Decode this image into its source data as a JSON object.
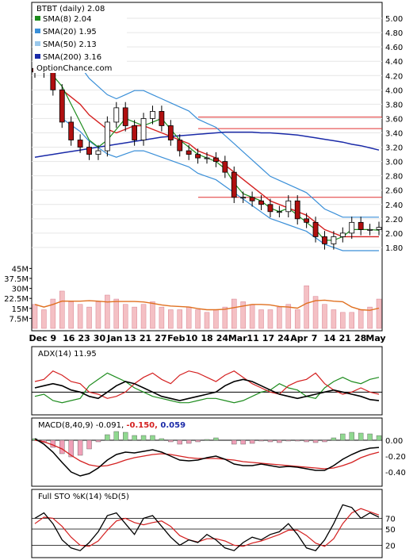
{
  "watermark": "OptionChance.com",
  "colors": {
    "sma8": "#1e8c1e",
    "sma20": "#3a8fd8",
    "sma50": "#e8e030",
    "sma200": "#1a2aa8",
    "upper_band": "#3a8fd8",
    "ema_red": "#d42020",
    "resistance": "#e03030",
    "volume_bar": "#f4c0c4",
    "volume_avg": "#e07020",
    "volume_avg200": "#e8b070",
    "adx": "#000000",
    "plus_di": "#1e8c1e",
    "minus_di": "#d42020",
    "macd": "#000000",
    "signal": "#d42020",
    "hist_pos": "#90d890",
    "hist_neg": "#f0a0b8",
    "sto_k": "#000000",
    "sto_d": "#d42020"
  },
  "chart_data": [
    {
      "type": "candlestick",
      "title": "BTBT (daily) 2.08",
      "legend": [
        {
          "name": "SMA(8) 2.04",
          "color": "#1e8c1e"
        },
        {
          "name": "SMA(20) 1.95",
          "color": "#3a8fd8"
        },
        {
          "name": "SMA(50) 2.13",
          "color": "#9ac8ec"
        },
        {
          "name": "SMA(200) 3.16",
          "color": "#1a2aa8"
        }
      ],
      "ylim": [
        1.6,
        5.1
      ],
      "y_ticks": [
        "1.80",
        "2.00",
        "2.20",
        "2.40",
        "2.60",
        "2.80",
        "3.00",
        "3.20",
        "3.40",
        "3.60",
        "3.80",
        "4.00",
        "4.20",
        "4.40",
        "4.60",
        "4.80",
        "5.00"
      ],
      "x_ticks": [
        "Dec",
        "9",
        "16",
        "23",
        "30",
        "Jan",
        "13",
        "21",
        "27",
        "Feb",
        "10",
        "18",
        "24",
        "Mar",
        "11",
        "17",
        "24",
        "Apr",
        "7",
        "14",
        "21",
        "28",
        "May"
      ],
      "x": [
        "2023-12-01",
        "2023-12-05",
        "2023-12-08",
        "2023-12-12",
        "2023-12-15",
        "2023-12-19",
        "2023-12-22",
        "2023-12-27",
        "2024-01-02",
        "2024-01-05",
        "2024-01-10",
        "2024-01-16",
        "2024-01-19",
        "2024-01-24",
        "2024-01-29",
        "2024-02-01",
        "2024-02-06",
        "2024-02-09",
        "2024-02-14",
        "2024-02-20",
        "2024-02-23",
        "2024-02-28",
        "2024-03-04",
        "2024-03-07",
        "2024-03-12",
        "2024-03-15",
        "2024-03-20",
        "2024-03-25",
        "2024-03-28",
        "2024-04-03",
        "2024-04-08",
        "2024-04-11",
        "2024-04-16",
        "2024-04-19",
        "2024-04-24",
        "2024-04-29",
        "2024-05-02",
        "2024-05-07",
        "2024-05-10"
      ],
      "close": [
        4.25,
        4.3,
        4.0,
        3.55,
        3.3,
        3.2,
        3.1,
        3.15,
        3.55,
        3.75,
        3.5,
        3.3,
        3.6,
        3.7,
        3.5,
        3.3,
        3.15,
        3.1,
        3.05,
        3.05,
        3.0,
        2.85,
        2.5,
        2.5,
        2.45,
        2.4,
        2.3,
        2.3,
        2.45,
        2.2,
        2.15,
        1.95,
        1.85,
        1.95,
        2.0,
        2.15,
        2.05,
        2.05,
        2.08
      ],
      "sma8": [
        null,
        null,
        4.2,
        4.05,
        3.8,
        3.55,
        3.3,
        3.2,
        3.3,
        3.45,
        3.6,
        3.55,
        3.5,
        3.55,
        3.6,
        3.45,
        3.3,
        3.2,
        3.1,
        3.05,
        3.0,
        2.9,
        2.7,
        2.55,
        2.5,
        2.45,
        2.35,
        2.3,
        2.35,
        2.25,
        2.15,
        2.05,
        1.9,
        1.9,
        1.95,
        2.05,
        2.05,
        2.05,
        2.04
      ],
      "sma20": [
        null,
        null,
        null,
        4.0,
        3.9,
        3.8,
        3.65,
        3.55,
        3.45,
        3.4,
        3.45,
        3.5,
        3.5,
        3.45,
        3.4,
        3.35,
        3.3,
        3.25,
        3.15,
        3.1,
        3.05,
        2.95,
        2.85,
        2.75,
        2.65,
        2.55,
        2.45,
        2.4,
        2.35,
        2.3,
        2.25,
        2.15,
        2.05,
        2.0,
        1.95,
        1.95,
        1.95,
        1.95,
        1.95
      ],
      "sma200": [
        3.06,
        3.08,
        3.1,
        3.12,
        3.14,
        3.16,
        3.18,
        3.2,
        3.22,
        3.24,
        3.26,
        3.28,
        3.3,
        3.32,
        3.34,
        3.35,
        3.36,
        3.37,
        3.38,
        3.39,
        3.4,
        3.41,
        3.41,
        3.41,
        3.41,
        3.4,
        3.4,
        3.39,
        3.38,
        3.37,
        3.35,
        3.33,
        3.31,
        3.29,
        3.27,
        3.24,
        3.22,
        3.19,
        3.16
      ],
      "resistance_levels": [
        3.62,
        3.46,
        2.5
      ]
    },
    {
      "type": "bar",
      "title": "",
      "y_ticks": [
        "7.5M",
        "15M",
        "22.5M",
        "30M",
        "37.5M",
        "45M"
      ],
      "ylim": [
        0,
        50
      ],
      "values": [
        18,
        14,
        22,
        28,
        20,
        18,
        16,
        20,
        25,
        22,
        18,
        16,
        18,
        20,
        16,
        14,
        14,
        16,
        14,
        12,
        14,
        16,
        22,
        20,
        18,
        14,
        14,
        16,
        18,
        14,
        32,
        24,
        18,
        14,
        12,
        12,
        14,
        16,
        22
      ]
    },
    {
      "type": "line",
      "title": "ADX(14) 11.95",
      "ylim": [
        0,
        60
      ],
      "adx": [
        24,
        26,
        28,
        26,
        22,
        20,
        16,
        14,
        20,
        26,
        30,
        28,
        24,
        20,
        16,
        14,
        12,
        14,
        16,
        18,
        20,
        26,
        30,
        32,
        30,
        26,
        22,
        18,
        16,
        14,
        16,
        18,
        20,
        22,
        20,
        18,
        16,
        13,
        11.95
      ],
      "plus_di": [
        16,
        18,
        12,
        10,
        12,
        14,
        26,
        32,
        38,
        34,
        30,
        24,
        20,
        16,
        14,
        12,
        10,
        10,
        12,
        14,
        14,
        12,
        10,
        12,
        16,
        20,
        22,
        28,
        24,
        22,
        16,
        14,
        24,
        30,
        34,
        30,
        28,
        32,
        34
      ],
      "minus_di": [
        30,
        32,
        40,
        36,
        30,
        28,
        20,
        18,
        14,
        16,
        20,
        28,
        34,
        38,
        32,
        28,
        36,
        40,
        38,
        34,
        30,
        36,
        40,
        34,
        28,
        24,
        20,
        18,
        26,
        30,
        32,
        38,
        28,
        22,
        18,
        20,
        24,
        20,
        18
      ]
    },
    {
      "type": "line",
      "title": "MACD(8,40,9) -0.091, -0.150, 0.059",
      "y_ticks": [
        "0.00",
        "-0.20",
        "-0.40"
      ],
      "ylim": [
        -0.55,
        0.1
      ],
      "macd": [
        0.02,
        -0.05,
        -0.15,
        -0.28,
        -0.4,
        -0.45,
        -0.42,
        -0.35,
        -0.25,
        -0.18,
        -0.15,
        -0.16,
        -0.14,
        -0.12,
        -0.15,
        -0.2,
        -0.25,
        -0.26,
        -0.25,
        -0.22,
        -0.2,
        -0.24,
        -0.3,
        -0.32,
        -0.32,
        -0.3,
        -0.32,
        -0.34,
        -0.33,
        -0.34,
        -0.36,
        -0.38,
        -0.38,
        -0.32,
        -0.24,
        -0.18,
        -0.13,
        -0.1,
        -0.091
      ],
      "signal": [
        0.0,
        -0.02,
        -0.06,
        -0.11,
        -0.19,
        -0.26,
        -0.31,
        -0.33,
        -0.32,
        -0.29,
        -0.25,
        -0.22,
        -0.2,
        -0.18,
        -0.17,
        -0.18,
        -0.2,
        -0.22,
        -0.23,
        -0.23,
        -0.23,
        -0.24,
        -0.25,
        -0.27,
        -0.28,
        -0.29,
        -0.3,
        -0.31,
        -0.32,
        -0.33,
        -0.34,
        -0.35,
        -0.36,
        -0.35,
        -0.32,
        -0.28,
        -0.22,
        -0.18,
        -0.15
      ],
      "histogram": [
        0.02,
        -0.03,
        -0.09,
        -0.17,
        -0.21,
        -0.19,
        -0.11,
        -0.02,
        0.07,
        0.11,
        0.1,
        0.06,
        0.06,
        0.06,
        0.02,
        -0.02,
        -0.05,
        -0.04,
        -0.02,
        0.01,
        0.03,
        0.0,
        -0.05,
        -0.05,
        -0.04,
        -0.01,
        -0.02,
        -0.03,
        -0.01,
        -0.01,
        -0.02,
        -0.03,
        -0.02,
        0.03,
        0.08,
        0.1,
        0.09,
        0.08,
        0.059
      ]
    },
    {
      "type": "line",
      "title": "Full STO %K(14) %D(5)",
      "y_ticks": [
        "20",
        "50",
        "70"
      ],
      "ylim": [
        0,
        100
      ],
      "k": [
        70,
        80,
        60,
        30,
        15,
        10,
        25,
        45,
        75,
        80,
        60,
        40,
        70,
        75,
        55,
        35,
        20,
        30,
        25,
        40,
        30,
        15,
        10,
        25,
        35,
        30,
        40,
        45,
        60,
        40,
        15,
        10,
        30,
        60,
        95,
        90,
        70,
        80,
        72
      ],
      "d": [
        60,
        72,
        70,
        55,
        35,
        20,
        18,
        28,
        48,
        65,
        70,
        62,
        58,
        62,
        65,
        55,
        38,
        30,
        26,
        32,
        32,
        28,
        20,
        18,
        24,
        28,
        34,
        40,
        48,
        48,
        38,
        24,
        18,
        32,
        60,
        80,
        88,
        82,
        76
      ]
    }
  ]
}
